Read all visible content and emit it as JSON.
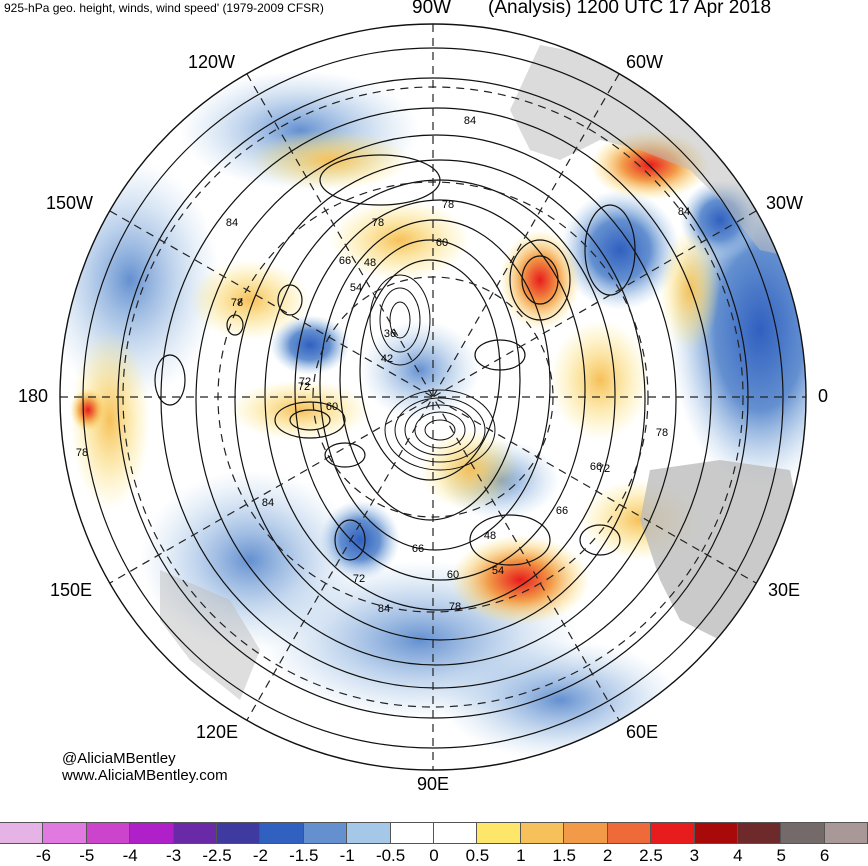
{
  "header": {
    "left_title": "925-hPa geo. height, winds, wind speed' (1979-2009 CFSR)",
    "top_lon_label": "90W",
    "right_title": "(Analysis) 1200 UTC 17 Apr 2018"
  },
  "longitude_labels": [
    "120W",
    "60W",
    "150W",
    "30W",
    "180",
    "0",
    "150E",
    "30E",
    "120E",
    "60E",
    "90E"
  ],
  "contour_labels": [
    "84",
    "84",
    "84",
    "78",
    "78",
    "78",
    "78",
    "72",
    "72",
    "72",
    "66",
    "66",
    "66",
    "66",
    "60",
    "60",
    "60",
    "54",
    "54",
    "48",
    "48",
    "42",
    "36",
    "84",
    "78",
    "84",
    "78",
    "72"
  ],
  "credits": {
    "handle": "@AliciaMBentley",
    "website": "www.AliciaMBentley.com"
  },
  "colorbar": {
    "colors": [
      "#e6b3e6",
      "#e07ae0",
      "#cc44cc",
      "#b020c8",
      "#6a2aa8",
      "#3f3aa0",
      "#3060c0",
      "#6490d0",
      "#a6c8e8",
      "#ffffff",
      "#ffffff",
      "#fde66a",
      "#f6c05a",
      "#f29a48",
      "#ee6a38",
      "#e81c1c",
      "#a80a0a",
      "#6e2a2a",
      "#756a6a",
      "#a89898"
    ],
    "labels": [
      "-6",
      "-5",
      "-4",
      "-3",
      "-2.5",
      "-2",
      "-1.5",
      "-1",
      "-0.5",
      "0",
      "0.5",
      "1",
      "1.5",
      "2",
      "2.5",
      "3",
      "4",
      "5",
      "6"
    ]
  },
  "colors": {
    "positive_accent": "#e81c1c",
    "negative_accent": "#3060c0",
    "land": "#bdbdbd"
  }
}
